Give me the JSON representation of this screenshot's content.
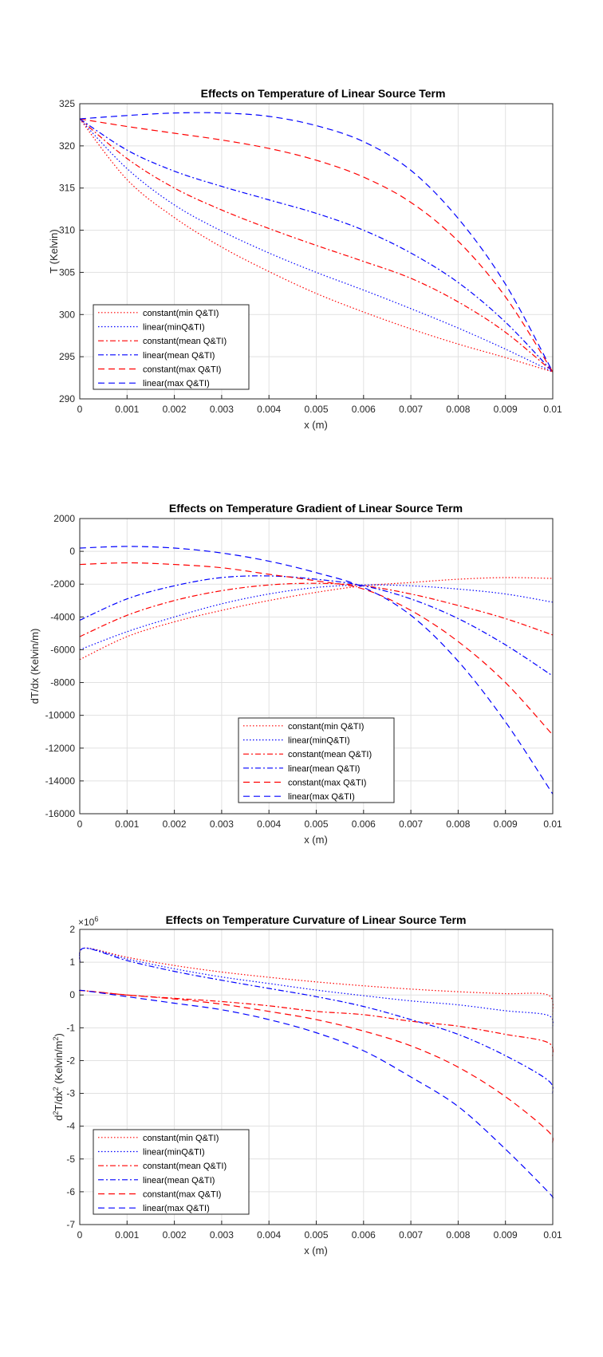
{
  "chart_data": [
    {
      "type": "line",
      "title": "Effects on Temperature of Linear Source Term",
      "xlabel": "x (m)",
      "ylabel": "T (Kelvin)",
      "xlim": [
        0,
        0.01
      ],
      "ylim": [
        290,
        325
      ],
      "xticks": [
        "0",
        "0.001",
        "0.002",
        "0.003",
        "0.004",
        "0.005",
        "0.006",
        "0.007",
        "0.008",
        "0.009",
        "0.01"
      ],
      "yticks": [
        "290",
        "295",
        "300",
        "305",
        "310",
        "315",
        "320",
        "325"
      ],
      "grid": true,
      "legend_position": "bottom-left",
      "x": [
        0,
        0.001,
        0.002,
        0.003,
        0.004,
        0.005,
        0.006,
        0.007,
        0.008,
        0.009,
        0.01
      ],
      "series": [
        {
          "name": "constant(min Q&TI)",
          "color": "#ff0000",
          "style": "dotted",
          "values": [
            323.2,
            316.0,
            311.5,
            308.0,
            305.1,
            302.5,
            300.3,
            298.3,
            296.5,
            294.9,
            293.2
          ]
        },
        {
          "name": "linear(minQ&TI)",
          "color": "#0000ff",
          "style": "dotted",
          "values": [
            323.2,
            317.3,
            313.0,
            309.9,
            307.3,
            305.0,
            302.9,
            300.7,
            298.4,
            295.9,
            293.2
          ]
        },
        {
          "name": "constant(mean Q&TI)",
          "color": "#ff0000",
          "style": "dashdot",
          "values": [
            323.2,
            318.5,
            315.0,
            312.4,
            310.2,
            308.2,
            306.3,
            304.3,
            301.5,
            297.9,
            293.2
          ]
        },
        {
          "name": "linear(mean Q&TI)",
          "color": "#0000ff",
          "style": "dashdot",
          "values": [
            323.2,
            319.5,
            317.0,
            315.2,
            313.6,
            312.0,
            310.0,
            307.3,
            303.8,
            299.1,
            293.2
          ]
        },
        {
          "name": "constant(max Q&TI)",
          "color": "#ff0000",
          "style": "dashed",
          "values": [
            323.2,
            322.3,
            321.5,
            320.7,
            319.7,
            318.3,
            316.3,
            313.3,
            308.7,
            302.1,
            293.2
          ]
        },
        {
          "name": "linear(max Q&TI)",
          "color": "#0000ff",
          "style": "dashed",
          "values": [
            323.2,
            323.6,
            323.9,
            323.9,
            323.5,
            322.4,
            320.5,
            317.1,
            311.4,
            303.6,
            293.2
          ]
        }
      ]
    },
    {
      "type": "line",
      "title": "Effects on Temperature Gradient of Linear Source Term",
      "xlabel": "x (m)",
      "ylabel": "dT/dx (Kelvin/m)",
      "xlim": [
        0,
        0.01
      ],
      "ylim": [
        -16000,
        2000
      ],
      "xticks": [
        "0",
        "0.001",
        "0.002",
        "0.003",
        "0.004",
        "0.005",
        "0.006",
        "0.007",
        "0.008",
        "0.009",
        "0.01"
      ],
      "yticks": [
        "-16000",
        "-14000",
        "-12000",
        "-10000",
        "-8000",
        "-6000",
        "-4000",
        "-2000",
        "0",
        "2000"
      ],
      "grid": true,
      "legend_position": "bottom-center",
      "x": [
        0,
        0.001,
        0.002,
        0.003,
        0.004,
        0.005,
        0.006,
        0.007,
        0.008,
        0.009,
        0.01
      ],
      "series": [
        {
          "name": "constant(min Q&TI)",
          "color": "#ff0000",
          "style": "dotted",
          "values": [
            -6600,
            -5200,
            -4300,
            -3600,
            -3000,
            -2500,
            -2100,
            -1900,
            -1700,
            -1600,
            -1650
          ]
        },
        {
          "name": "linear(minQ&TI)",
          "color": "#0000ff",
          "style": "dotted",
          "values": [
            -6000,
            -4900,
            -4000,
            -3200,
            -2600,
            -2200,
            -2050,
            -2100,
            -2300,
            -2600,
            -3100
          ]
        },
        {
          "name": "constant(mean Q&TI)",
          "color": "#ff0000",
          "style": "dashdot",
          "values": [
            -5200,
            -3900,
            -3000,
            -2400,
            -2050,
            -1950,
            -2100,
            -2600,
            -3300,
            -4100,
            -5100
          ]
        },
        {
          "name": "linear(mean Q&TI)",
          "color": "#0000ff",
          "style": "dashdot",
          "values": [
            -4200,
            -2900,
            -2100,
            -1600,
            -1500,
            -1700,
            -2100,
            -2900,
            -4100,
            -5700,
            -7600
          ]
        },
        {
          "name": "constant(max Q&TI)",
          "color": "#ff0000",
          "style": "dashed",
          "values": [
            -800,
            -700,
            -800,
            -1000,
            -1400,
            -1800,
            -2300,
            -3600,
            -5500,
            -8000,
            -11200
          ]
        },
        {
          "name": "linear(max Q&TI)",
          "color": "#0000ff",
          "style": "dashed",
          "values": [
            200,
            300,
            200,
            -100,
            -600,
            -1300,
            -2200,
            -3900,
            -6700,
            -10400,
            -14800
          ]
        }
      ]
    },
    {
      "type": "line",
      "title": "Effects on Temperature Curvature of Linear Source Term",
      "xlabel": "x (m)",
      "ylabel": "d^2T/dx^2 (Kelvin/m^2)",
      "ylabel_parts": {
        "a": "d",
        "b": "2",
        "c": "T/dx",
        "d": "2",
        "e": " (Kelvin/m",
        "f": "2",
        "g": ")"
      },
      "exponent_label": {
        "base": "×10",
        "power": "6"
      },
      "xlim": [
        0,
        0.01
      ],
      "ylim": [
        -7,
        2
      ],
      "xticks": [
        "0",
        "0.001",
        "0.002",
        "0.003",
        "0.004",
        "0.005",
        "0.006",
        "0.007",
        "0.008",
        "0.009",
        "0.01"
      ],
      "yticks": [
        "-7",
        "-6",
        "-5",
        "-4",
        "-3",
        "-2",
        "-1",
        "0",
        "1",
        "2"
      ],
      "grid": true,
      "legend_position": "bottom-left",
      "x": [
        0,
        0.0001,
        0.001,
        0.002,
        0.003,
        0.004,
        0.005,
        0.006,
        0.007,
        0.008,
        0.009,
        0.0099,
        0.01
      ],
      "series": [
        {
          "name": "constant(min Q&TI)",
          "color": "#ff0000",
          "style": "dotted",
          "values": [
            1.0,
            1.43,
            1.15,
            0.9,
            0.7,
            0.54,
            0.4,
            0.28,
            0.18,
            0.1,
            0.04,
            0.0,
            -0.6
          ]
        },
        {
          "name": "linear(minQ&TI)",
          "color": "#0000ff",
          "style": "dotted",
          "values": [
            1.0,
            1.43,
            1.1,
            0.8,
            0.55,
            0.35,
            0.15,
            -0.02,
            -0.18,
            -0.3,
            -0.48,
            -0.62,
            -1.0
          ]
        },
        {
          "name": "constant(mean Q&TI)",
          "color": "#ff0000",
          "style": "dashdot",
          "values": [
            0.13,
            0.13,
            0.0,
            -0.1,
            -0.2,
            -0.33,
            -0.5,
            -0.6,
            -0.8,
            -0.95,
            -1.2,
            -1.45,
            -1.9
          ]
        },
        {
          "name": "linear(mean Q&TI)",
          "color": "#0000ff",
          "style": "dashdot",
          "values": [
            1.0,
            1.43,
            1.05,
            0.72,
            0.45,
            0.2,
            -0.05,
            -0.35,
            -0.75,
            -1.2,
            -1.85,
            -2.6,
            -3.0
          ]
        },
        {
          "name": "constant(max Q&TI)",
          "color": "#ff0000",
          "style": "dashed",
          "values": [
            0.13,
            0.13,
            0.0,
            -0.12,
            -0.28,
            -0.5,
            -0.75,
            -1.1,
            -1.55,
            -2.2,
            -3.1,
            -4.15,
            -4.5
          ]
        },
        {
          "name": "linear(max Q&TI)",
          "color": "#0000ff",
          "style": "dashed",
          "values": [
            0.13,
            0.13,
            -0.05,
            -0.25,
            -0.45,
            -0.75,
            -1.15,
            -1.7,
            -2.5,
            -3.4,
            -4.7,
            -6.0,
            -6.2
          ]
        }
      ]
    }
  ]
}
